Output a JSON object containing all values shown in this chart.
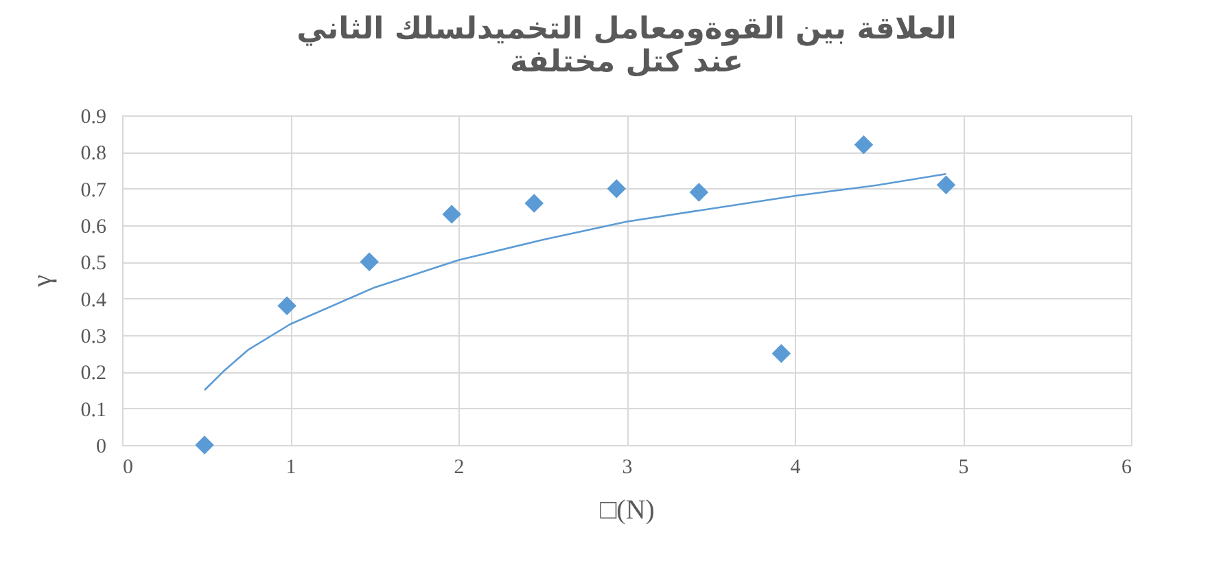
{
  "chart_data": {
    "type": "scatter",
    "title": [
      "العلاقة بين القوةومعامل التخميدلسلك الثاني",
      "عند كتل مختلفة"
    ],
    "xlabel": "□(N)",
    "ylabel": "γ",
    "x": [
      0.49,
      0.98,
      1.47,
      1.96,
      2.45,
      2.94,
      3.43,
      3.92,
      4.41,
      4.9
    ],
    "series": [
      {
        "color": "#5b9bd5",
        "marker": "diamond",
        "values": [
          0,
          0.38,
          0.5,
          0.63,
          0.66,
          0.7,
          0.69,
          0.25,
          0.82,
          0.71
        ]
      },
      {
        "type": "line",
        "color": "#5b9bd5",
        "marker": "none",
        "line_style": "solid",
        "x": [
          0.49,
          0.6,
          0.75,
          1,
          1.5,
          2,
          2.5,
          3,
          3.5,
          4,
          4.5,
          4.9
        ],
        "values": [
          0.15,
          0.2,
          0.26,
          0.33,
          0.43,
          0.505,
          0.56,
          0.61,
          0.645,
          0.68,
          0.71,
          0.74
        ]
      }
    ],
    "xlim": [
      0,
      6
    ],
    "xticks": [
      0,
      1,
      2,
      3,
      4,
      5,
      6
    ],
    "ylim": [
      0,
      0.9
    ],
    "yticks": [
      0,
      0.1,
      0.2,
      0.3,
      0.4,
      0.5,
      0.6,
      0.7,
      0.8,
      0.9
    ],
    "grid": true
  }
}
